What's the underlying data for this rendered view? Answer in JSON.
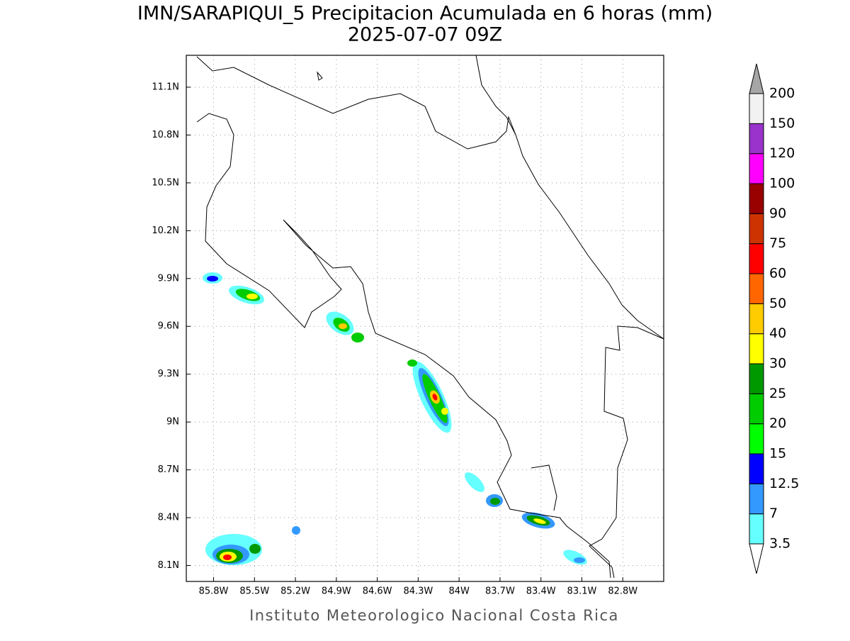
{
  "title": "IMN/SARAPIQUI_5 Precipitacion Acumulada en 6 horas (mm)",
  "subtitle": "2025-07-07 09Z",
  "map": {
    "xlim": [
      -86.0,
      -82.5
    ],
    "ylim": [
      8.0,
      11.3
    ],
    "xticks": [
      {
        "value": -85.8,
        "label": "85.8W"
      },
      {
        "value": -85.5,
        "label": "85.5W"
      },
      {
        "value": -85.2,
        "label": "85.2W"
      },
      {
        "value": -84.9,
        "label": "84.9W"
      },
      {
        "value": -84.6,
        "label": "84.6W"
      },
      {
        "value": -84.3,
        "label": "84.3W"
      },
      {
        "value": -84.0,
        "label": "84W"
      },
      {
        "value": -83.7,
        "label": "83.7W"
      },
      {
        "value": -83.4,
        "label": "83.4W"
      },
      {
        "value": -83.1,
        "label": "83.1W"
      },
      {
        "value": -82.8,
        "label": "82.8W"
      }
    ],
    "yticks": [
      {
        "value": 8.1,
        "label": "8.1N"
      },
      {
        "value": 8.4,
        "label": "8.4N"
      },
      {
        "value": 8.7,
        "label": "8.7N"
      },
      {
        "value": 9.0,
        "label": "9N"
      },
      {
        "value": 9.3,
        "label": "9.3N"
      },
      {
        "value": 9.6,
        "label": "9.6N"
      },
      {
        "value": 9.9,
        "label": "9.9N"
      },
      {
        "value": 10.2,
        "label": "10.2N"
      },
      {
        "value": 10.5,
        "label": "10.5N"
      },
      {
        "value": 10.8,
        "label": "10.8N"
      },
      {
        "value": 11.1,
        "label": "11.1N"
      }
    ],
    "grid": true
  },
  "colorbar": {
    "levels": [
      3.5,
      7,
      12.5,
      15,
      20,
      25,
      30,
      40,
      50,
      60,
      75,
      90,
      100,
      120,
      150,
      200
    ],
    "colors": [
      "#66ffff",
      "#3399ff",
      "#0000ff",
      "#00ff00",
      "#00cc00",
      "#009900",
      "#ffff00",
      "#ffcc00",
      "#ff6600",
      "#ff0000",
      "#cc3300",
      "#990000",
      "#ff00ff",
      "#9933cc",
      "#f2f2f2"
    ],
    "under_color": "#ffffff",
    "over_color": "#a6a6a6"
  },
  "footer": "Instituto Meteorologico Nacional Costa Rica"
}
